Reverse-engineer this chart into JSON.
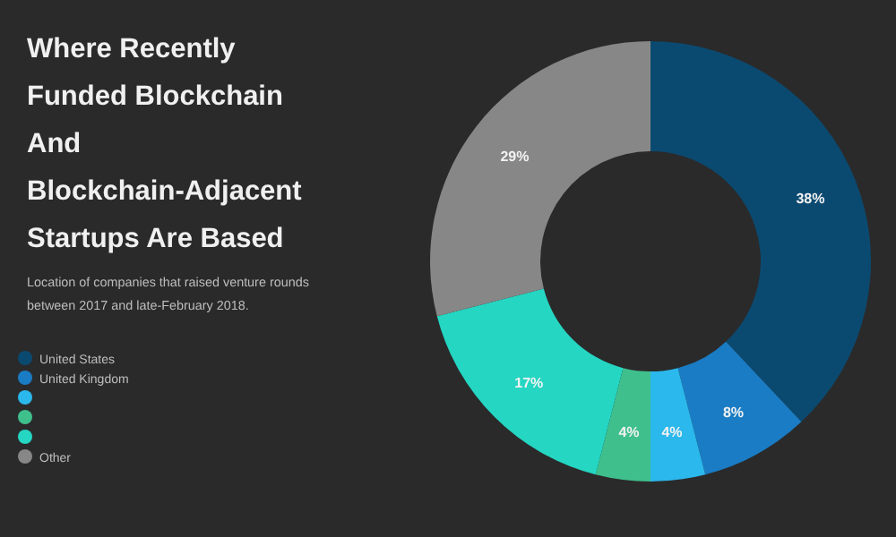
{
  "chart_data": {
    "type": "donut",
    "title": "Where Recently Funded Blockchain And Blockchain-Adjacent Startups Are Based",
    "subtitle": "Location of companies that raised venture rounds between 2017 and late-February 2018.",
    "categories": [
      "United States",
      "United Kingdom",
      null,
      null,
      null,
      "Other"
    ],
    "values": [
      38,
      8,
      4,
      4,
      17,
      29
    ],
    "colors": [
      "#0b4a70",
      "#1a7cc4",
      "#2bb8ec",
      "#3fbf8c",
      "#25d6c2",
      "#878787"
    ],
    "value_labels": [
      "38%",
      "8%",
      "4%",
      "4%",
      "17%",
      "29%"
    ],
    "legend": "bottom left"
  }
}
